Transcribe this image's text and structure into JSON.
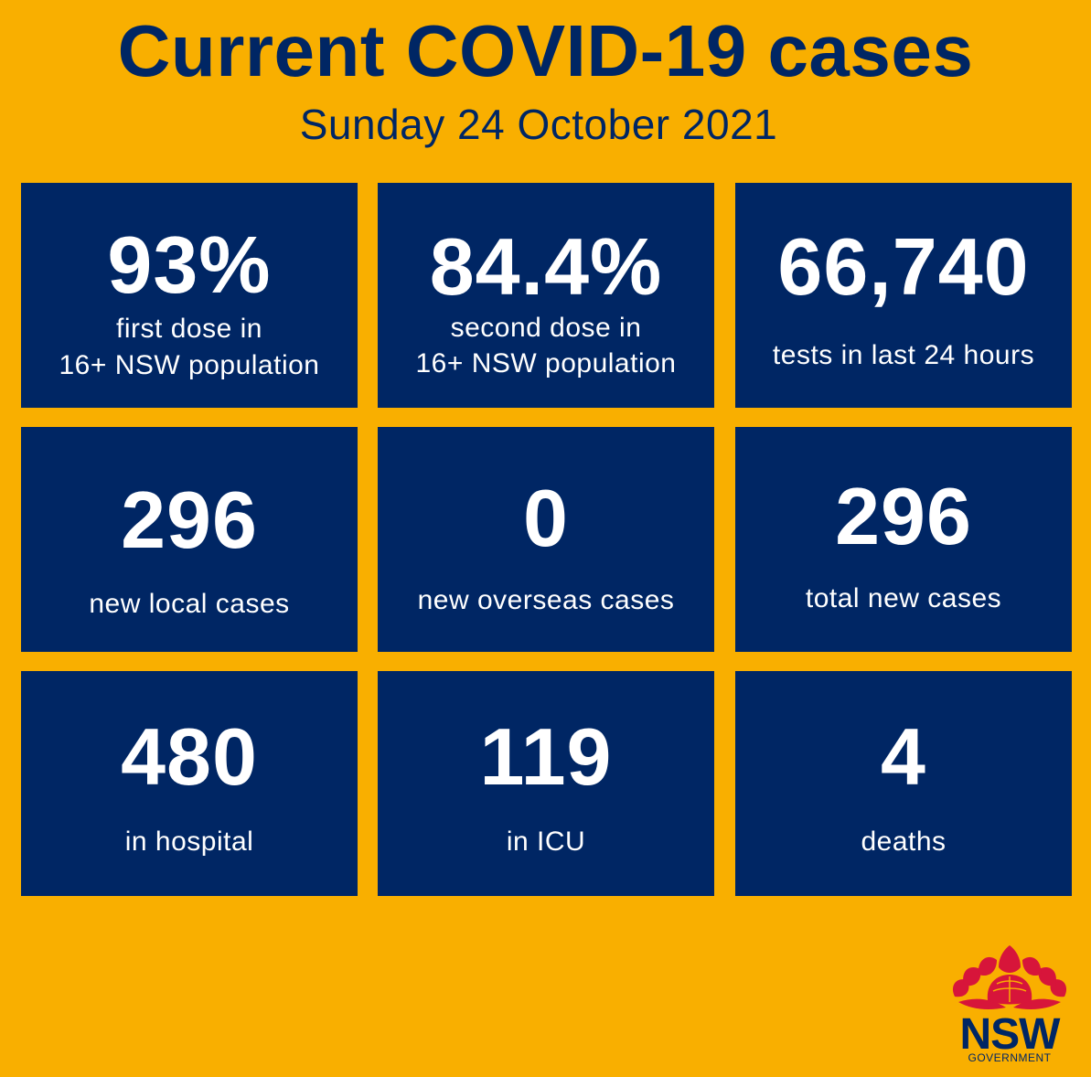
{
  "header": {
    "title": "Current COVID-19 cases",
    "date": "Sunday 24 October 2021"
  },
  "stats": [
    {
      "value": "93%",
      "label_line1": "first dose in",
      "label_line2": "16+ NSW population"
    },
    {
      "value": "84.4%",
      "label_line1": "second dose in",
      "label_line2": "16+ NSW population"
    },
    {
      "value": "66,740",
      "label_line1": "tests in last 24 hours"
    },
    {
      "value": "296",
      "label_line1": "new local cases"
    },
    {
      "value": "0",
      "label_line1": "new overseas cases"
    },
    {
      "value": "296",
      "label_line1": "total new cases"
    },
    {
      "value": "480",
      "label_line1": "in hospital"
    },
    {
      "value": "119",
      "label_line1": "in ICU"
    },
    {
      "value": "4",
      "label_line1": "deaths"
    }
  ],
  "logo": {
    "wordmark": "NSW",
    "subtext": "GOVERNMENT",
    "icon": "waratah-icon",
    "petal_color": "#D7153A",
    "text_color": "#002664"
  },
  "colors": {
    "background": "#F9AF00",
    "tile": "#002664",
    "tile_text": "#FFFFFF",
    "title_text": "#002664"
  }
}
